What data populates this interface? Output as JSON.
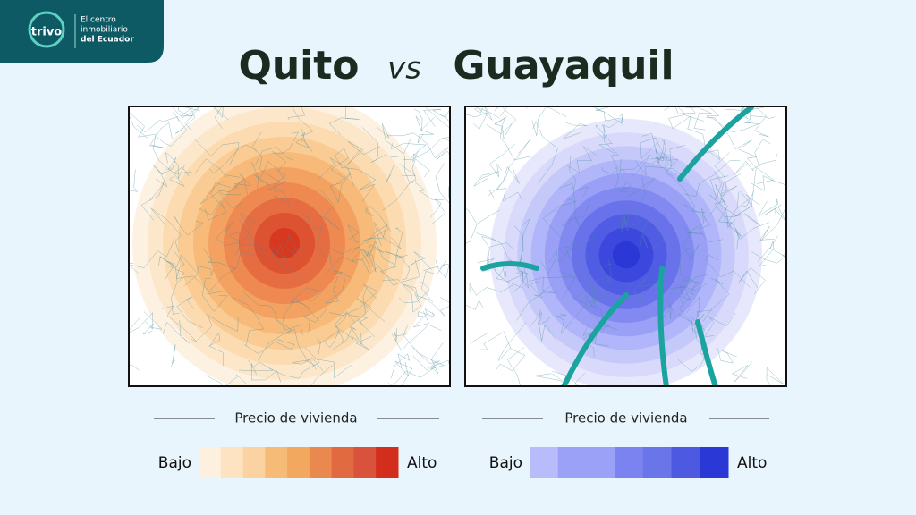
{
  "logo": {
    "name": "trivo",
    "tagline": [
      "El centro",
      "inmobiliario",
      "del Ecuador"
    ]
  },
  "title": {
    "left": "Quito",
    "middle": "vs",
    "right": "Guayaquil"
  },
  "legends": [
    {
      "title": "Precio de vivienda",
      "low": "Bajo",
      "high": "Alto"
    },
    {
      "title": "Precio de vivienda",
      "low": "Bajo",
      "high": "Alto"
    }
  ]
}
